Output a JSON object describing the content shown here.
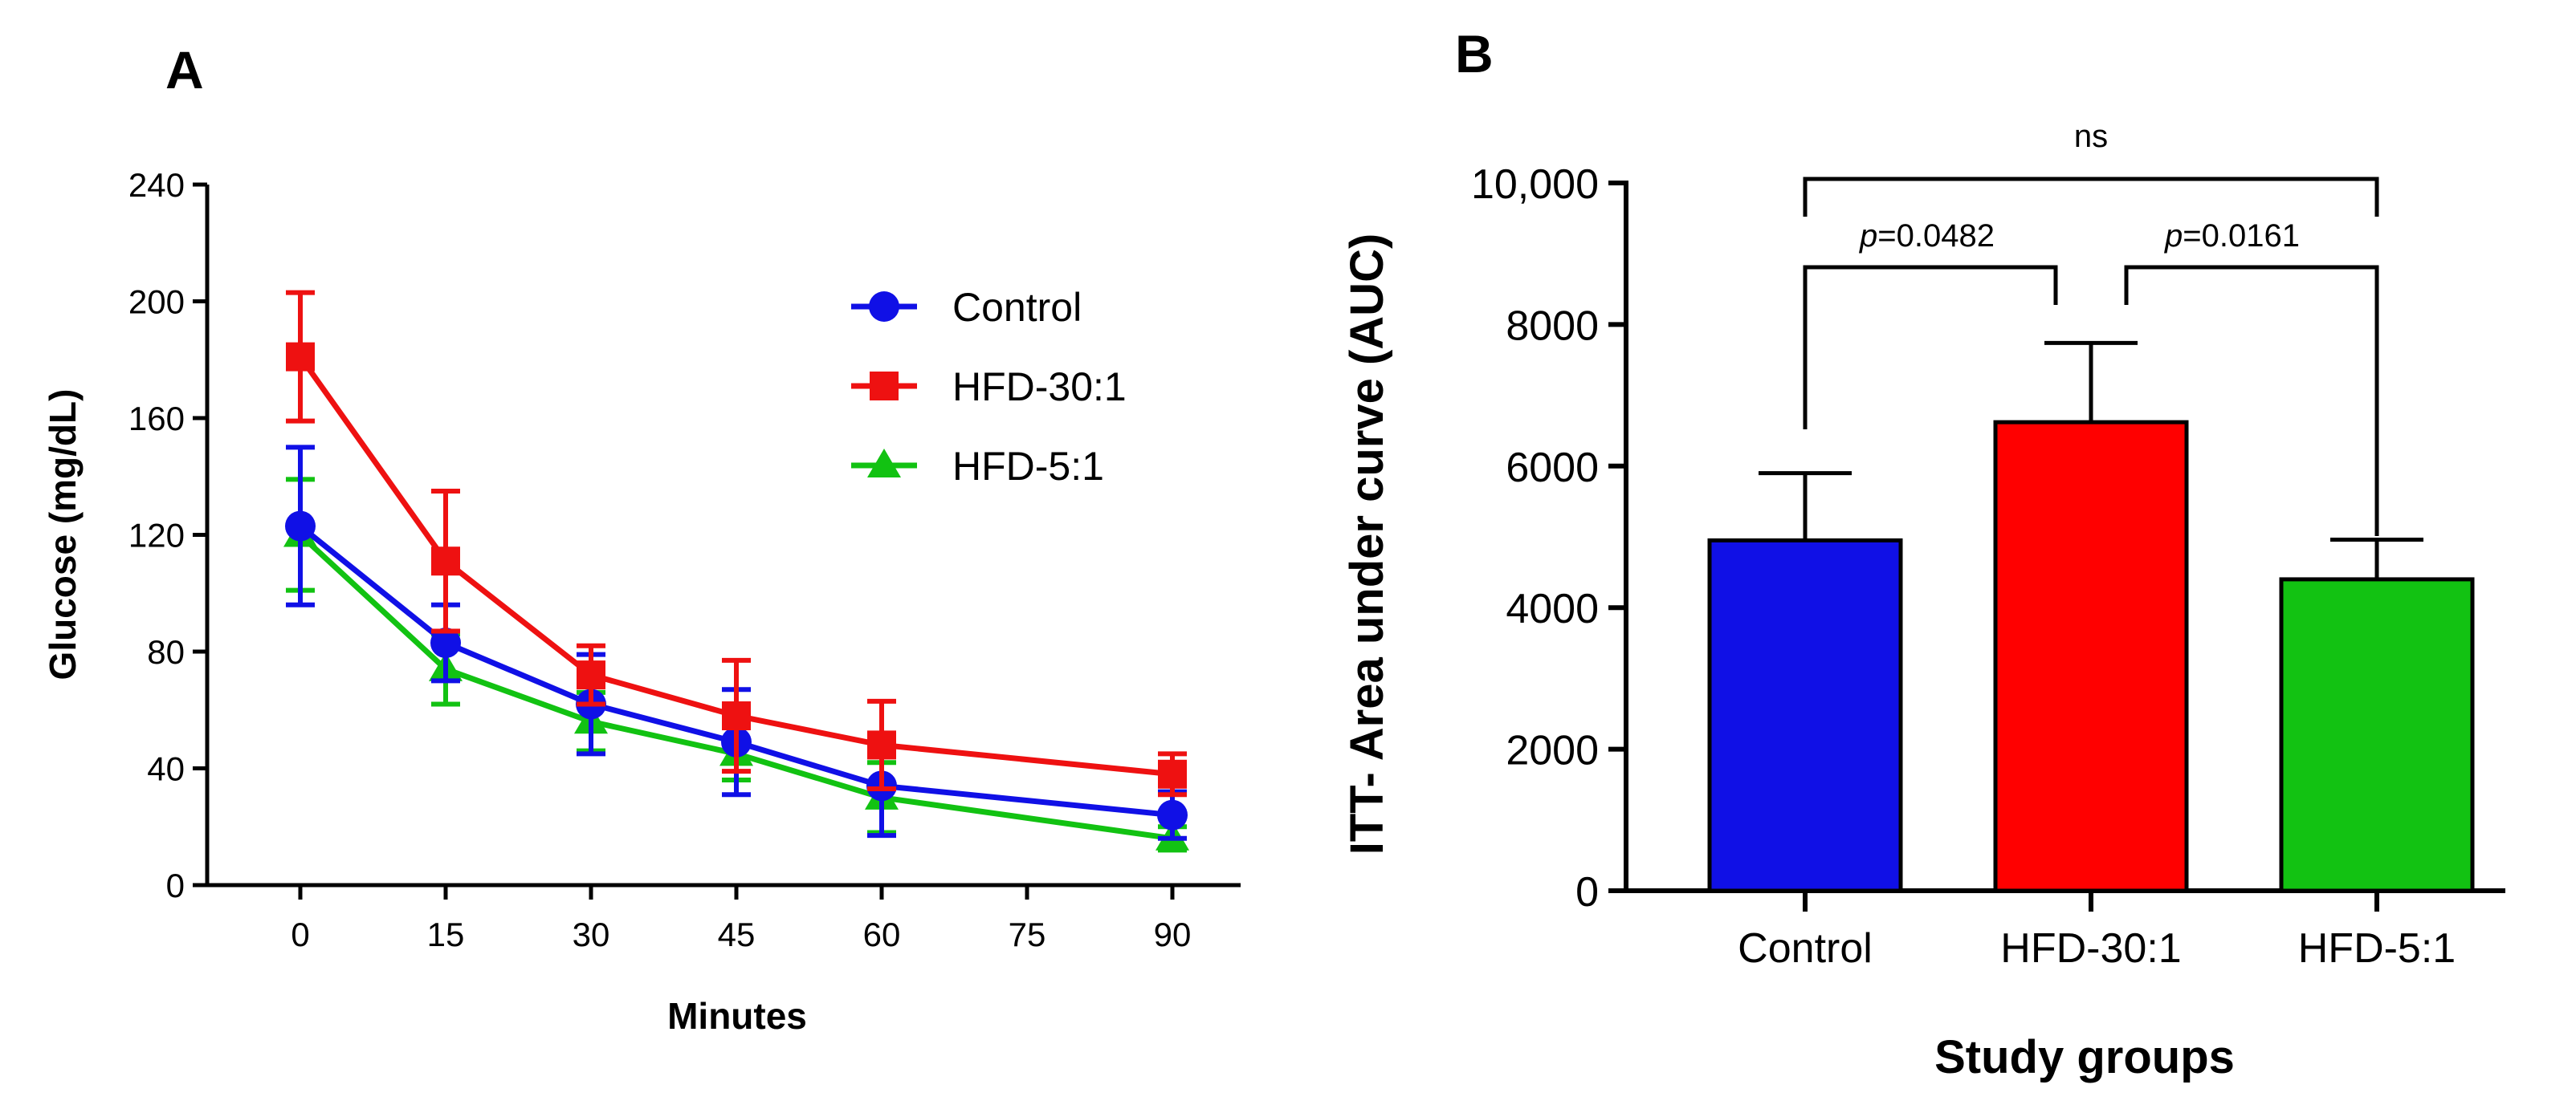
{
  "chart_data": [
    {
      "panel": "A",
      "type": "line",
      "xlabel": "Minutes",
      "ylabel": "Glucose (mg/dL)",
      "xlim": [
        -10,
        100
      ],
      "ylim": [
        0,
        240
      ],
      "xticks": [
        0,
        15,
        30,
        45,
        60,
        75,
        90
      ],
      "yticks": [
        0,
        40,
        80,
        120,
        160,
        200,
        240
      ],
      "legend_position": "top-right",
      "series": [
        {
          "name": "Control",
          "color": "#1010e6",
          "marker": "circle",
          "x": [
            0,
            15,
            30,
            45,
            60,
            90
          ],
          "y": [
            123,
            83,
            62,
            49,
            34,
            24
          ],
          "err": [
            27,
            13,
            17,
            18,
            17,
            8
          ]
        },
        {
          "name": "HFD-30:1",
          "color": "#ee1111",
          "marker": "square",
          "x": [
            0,
            15,
            30,
            45,
            60,
            90
          ],
          "y": [
            181,
            111,
            72,
            58,
            48,
            38
          ],
          "err": [
            22,
            24,
            10,
            19,
            15,
            7
          ]
        },
        {
          "name": "HFD-5:1",
          "color": "#12c212",
          "marker": "triangle",
          "x": [
            0,
            15,
            30,
            45,
            60,
            90
          ],
          "y": [
            120,
            74,
            56,
            45,
            30,
            16
          ],
          "err": [
            19,
            12,
            10,
            9,
            12,
            4
          ]
        }
      ]
    },
    {
      "panel": "B",
      "type": "bar",
      "xlabel": "Study groups",
      "ylabel": "ITT- Area under curve (AUC)",
      "ylim": [
        0,
        10000
      ],
      "yticks": [
        0,
        2000,
        4000,
        6000,
        8000,
        10000
      ],
      "ytick_labels": [
        "0",
        "2000",
        "4000",
        "6000",
        "8000",
        "10,000"
      ],
      "categories": [
        "Control",
        "HFD-30:1",
        "HFD-5:1"
      ],
      "values": [
        4950,
        6620,
        4400
      ],
      "errors": [
        950,
        1120,
        560
      ],
      "colors": [
        "#1010e6",
        "#ff0000",
        "#12c212"
      ],
      "annotations": [
        {
          "from": 0,
          "to": 1,
          "p_symbol": "p",
          "p_value": "=0.0482"
        },
        {
          "from": 1,
          "to": 2,
          "p_symbol": "p",
          "p_value": "=0.0161"
        },
        {
          "from": 0,
          "to": 2,
          "label": "ns"
        }
      ]
    }
  ]
}
